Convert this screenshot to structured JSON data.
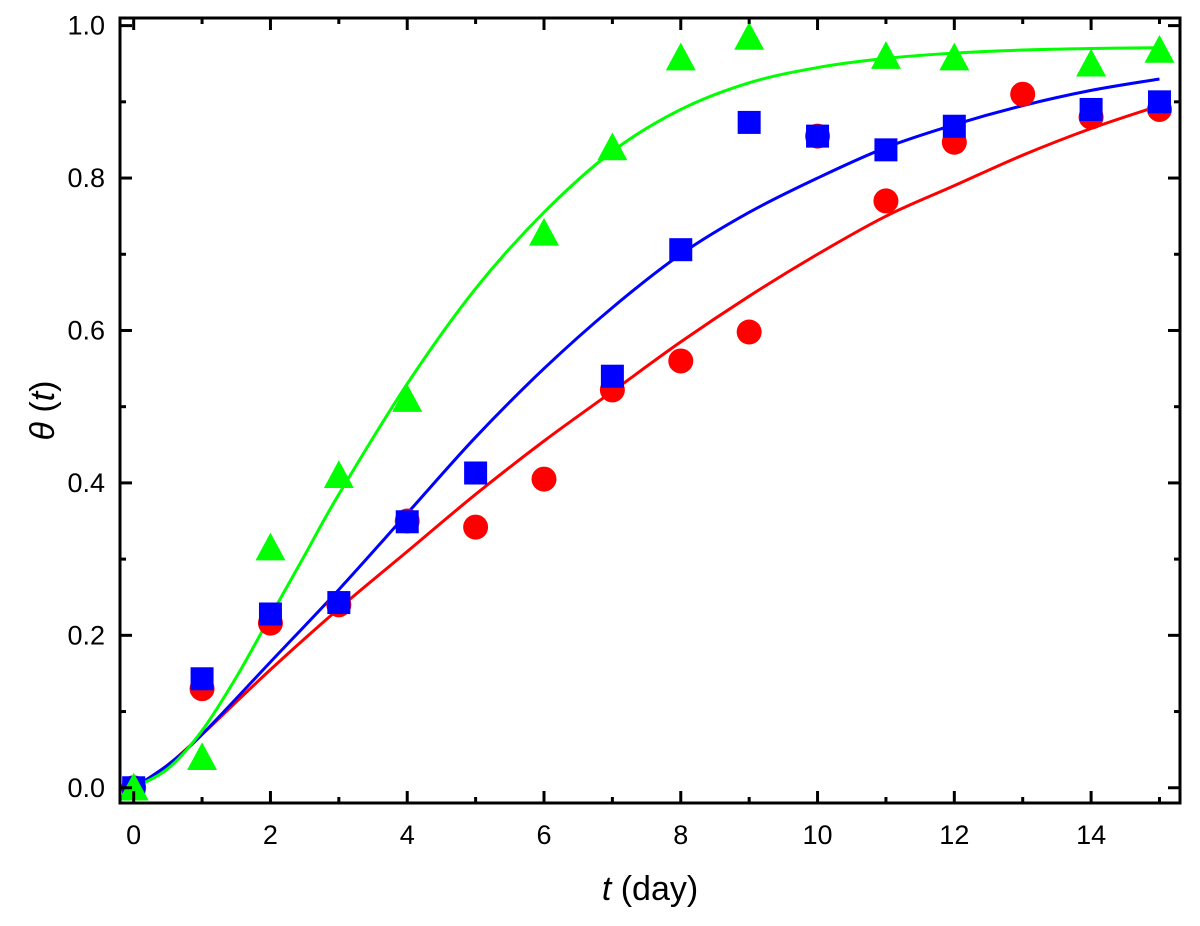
{
  "chart_data": {
    "type": "scatter",
    "title": "",
    "xlabel": {
      "var": "t",
      "rest": " (day)"
    },
    "ylabel": {
      "var": "θ",
      "open": " (",
      "arg": "t",
      "close": ")"
    },
    "xlim": [
      -0.2,
      15.3
    ],
    "ylim": [
      -0.02,
      1.01
    ],
    "xticks": [
      0,
      2,
      4,
      6,
      8,
      10,
      12,
      14
    ],
    "xtick_labels": [
      "0",
      "2",
      "4",
      "6",
      "8",
      "10",
      "12",
      "14"
    ],
    "yticks": [
      0.0,
      0.2,
      0.4,
      0.6,
      0.8,
      1.0
    ],
    "ytick_labels": [
      "0.0",
      "0.2",
      "0.4",
      "0.6",
      "0.8",
      "1.0"
    ],
    "grid": false,
    "legend": "none",
    "series": [
      {
        "marker": "circle",
        "color": "#ff0000",
        "x": [
          0,
          1,
          2,
          3,
          4,
          5,
          6,
          7,
          8,
          9,
          10,
          11,
          12,
          13,
          14,
          15
        ],
        "y": [
          0.0,
          0.13,
          0.216,
          0.24,
          0.35,
          0.342,
          0.405,
          0.522,
          0.56,
          0.598,
          0.855,
          0.77,
          0.847,
          0.91,
          0.88,
          0.89
        ],
        "fit": {
          "x": [
            0,
            0.5,
            1,
            2,
            3,
            4,
            5,
            6,
            7,
            8,
            9,
            10,
            11,
            12,
            13,
            14,
            15
          ],
          "y": [
            0.0,
            0.03,
            0.07,
            0.155,
            0.235,
            0.31,
            0.385,
            0.455,
            0.52,
            0.585,
            0.645,
            0.7,
            0.75,
            0.79,
            0.83,
            0.865,
            0.895
          ]
        }
      },
      {
        "marker": "square",
        "color": "#0000ff",
        "x": [
          0,
          1,
          2,
          3,
          4,
          5,
          7,
          8,
          9,
          10,
          11,
          12,
          14,
          15
        ],
        "y": [
          0.0,
          0.143,
          0.228,
          0.243,
          0.349,
          0.413,
          0.54,
          0.706,
          0.873,
          0.855,
          0.837,
          0.868,
          0.89,
          0.9
        ],
        "fit": {
          "x": [
            0,
            0.5,
            1,
            2,
            3,
            4,
            5,
            6,
            7,
            8,
            9,
            10,
            11,
            12,
            13,
            14,
            15
          ],
          "y": [
            0.0,
            0.03,
            0.07,
            0.165,
            0.26,
            0.36,
            0.46,
            0.55,
            0.63,
            0.7,
            0.755,
            0.8,
            0.84,
            0.87,
            0.895,
            0.915,
            0.93
          ]
        }
      },
      {
        "marker": "triangle",
        "color": "#00ff00",
        "x": [
          0,
          1,
          2,
          3,
          4,
          6,
          7,
          8,
          9,
          11,
          12,
          14,
          15
        ],
        "y": [
          0.0,
          0.04,
          0.315,
          0.41,
          0.51,
          0.728,
          0.84,
          0.958,
          0.985,
          0.96,
          0.958,
          0.95,
          0.968
        ],
        "fit": {
          "x": [
            0,
            0.5,
            1,
            1.5,
            2,
            2.5,
            3,
            4,
            5,
            6,
            7,
            8,
            9,
            10,
            11,
            12,
            13,
            14,
            15
          ],
          "y": [
            0.0,
            0.025,
            0.075,
            0.145,
            0.225,
            0.305,
            0.385,
            0.53,
            0.655,
            0.755,
            0.835,
            0.89,
            0.925,
            0.945,
            0.957,
            0.964,
            0.968,
            0.97,
            0.971
          ]
        }
      }
    ]
  }
}
